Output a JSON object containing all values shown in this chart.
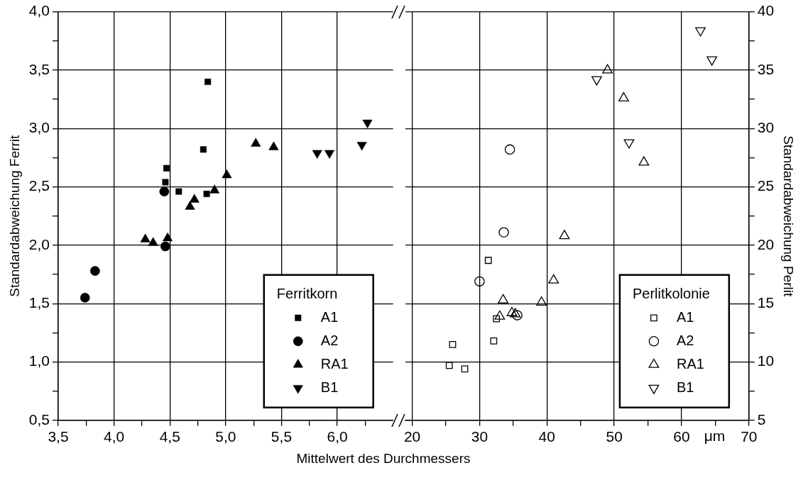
{
  "chart_data": [
    {
      "type": "scatter",
      "xlabel": "Mittelwert des Durchmessers",
      "ylabel": "Standardabweichung Ferrit",
      "legend_title": "Ferritkorn",
      "legend": "bottom right",
      "grid": true,
      "xlim": [
        3.5,
        6.5
      ],
      "xticks": [
        {
          "value": 3.5,
          "label": "3,5"
        },
        {
          "value": 3.75,
          "label": null
        },
        {
          "value": 4.0,
          "label": "4,0"
        },
        {
          "value": 4.25,
          "label": null
        },
        {
          "value": 4.5,
          "label": "4,5"
        },
        {
          "value": 4.75,
          "label": null
        },
        {
          "value": 5.0,
          "label": "5,0"
        },
        {
          "value": 5.25,
          "label": null
        },
        {
          "value": 5.5,
          "label": "5,5"
        },
        {
          "value": 5.75,
          "label": null
        },
        {
          "value": 6.0,
          "label": "6,0"
        },
        {
          "value": 6.25,
          "label": null
        }
      ],
      "ylim": [
        0.5,
        4.0
      ],
      "yticks": [
        {
          "value": 0.5,
          "label": "0,5"
        },
        {
          "value": 0.75,
          "label": null
        },
        {
          "value": 1.0,
          "label": "1,0"
        },
        {
          "value": 1.25,
          "label": null
        },
        {
          "value": 1.5,
          "label": "1,5"
        },
        {
          "value": 1.75,
          "label": null
        },
        {
          "value": 2.0,
          "label": "2,0"
        },
        {
          "value": 2.25,
          "label": null
        },
        {
          "value": 2.5,
          "label": "2,5"
        },
        {
          "value": 2.75,
          "label": null
        },
        {
          "value": 3.0,
          "label": "3,0"
        },
        {
          "value": 3.25,
          "label": null
        },
        {
          "value": 3.5,
          "label": "3,5"
        },
        {
          "value": 3.75,
          "label": null
        },
        {
          "value": 4.0,
          "label": "4,0"
        }
      ],
      "series": [
        {
          "name": "A1",
          "color": "#000000",
          "marker": "square",
          "x": [
            4.84,
            4.8,
            4.47,
            4.46,
            4.58,
            4.83
          ],
          "values": [
            3.4,
            2.82,
            2.66,
            2.54,
            2.46,
            2.44
          ]
        },
        {
          "name": "A2",
          "color": "#000000",
          "marker": "circle",
          "x": [
            4.45,
            4.46,
            3.83,
            3.74
          ],
          "values": [
            2.46,
            1.99,
            1.78,
            1.55
          ]
        },
        {
          "name": "RA1",
          "color": "#000000",
          "marker": "triangle",
          "x": [
            4.68,
            4.72,
            4.9,
            5.01,
            5.27,
            5.43,
            4.28,
            4.35,
            4.48
          ],
          "values": [
            2.33,
            2.39,
            2.47,
            2.6,
            2.87,
            2.84,
            2.05,
            2.02,
            2.06
          ]
        },
        {
          "name": "B1",
          "color": "#000000",
          "marker": "triangle-down",
          "x": [
            5.82,
            5.93,
            6.22,
            6.27
          ],
          "values": [
            2.79,
            2.79,
            2.86,
            3.05
          ]
        }
      ]
    },
    {
      "type": "scatter",
      "y2label": "Standardabweichung Perlit",
      "legend_title": "Perlitkolonie",
      "legend": "bottom right",
      "grid": true,
      "annotations": [
        "μm"
      ],
      "xlim": [
        19,
        70
      ],
      "xticks": [
        {
          "value": 20,
          "label": "20"
        },
        {
          "value": 25,
          "label": null
        },
        {
          "value": 30,
          "label": "30"
        },
        {
          "value": 35,
          "label": null
        },
        {
          "value": 40,
          "label": "40"
        },
        {
          "value": 45,
          "label": null
        },
        {
          "value": 50,
          "label": "50"
        },
        {
          "value": 55,
          "label": null
        },
        {
          "value": 60,
          "label": "60"
        },
        {
          "value": 65,
          "label": null
        },
        {
          "value": 70,
          "label": "70"
        }
      ],
      "y2lim": [
        5,
        40
      ],
      "y2ticks": [
        {
          "value": 5,
          "label": "5"
        },
        {
          "value": 7.5,
          "label": null
        },
        {
          "value": 10,
          "label": "10"
        },
        {
          "value": 12.5,
          "label": null
        },
        {
          "value": 15,
          "label": "15"
        },
        {
          "value": 17.5,
          "label": null
        },
        {
          "value": 20,
          "label": "20"
        },
        {
          "value": 22.5,
          "label": null
        },
        {
          "value": 25,
          "label": "25"
        },
        {
          "value": 27.5,
          "label": null
        },
        {
          "value": 30,
          "label": "30"
        },
        {
          "value": 32.5,
          "label": null
        },
        {
          "value": 35,
          "label": "35"
        },
        {
          "value": 37.5,
          "label": null
        },
        {
          "value": 40,
          "label": "40"
        }
      ],
      "series": [
        {
          "name": "A1",
          "color": "#000000",
          "marker": "square",
          "axis": "y2",
          "x": [
            31.3,
            32.5,
            32.1,
            26.0,
            25.5,
            27.8
          ],
          "values": [
            18.7,
            13.7,
            11.8,
            11.5,
            9.7,
            9.4
          ]
        },
        {
          "name": "A2",
          "color": "#000000",
          "marker": "circle",
          "axis": "y2",
          "x": [
            34.5,
            33.6,
            30.0,
            35.6
          ],
          "values": [
            28.2,
            21.1,
            16.9,
            14.0
          ]
        },
        {
          "name": "RA1",
          "color": "#000000",
          "marker": "triangle",
          "axis": "y2",
          "x": [
            49.0,
            51.4,
            54.4,
            42.6,
            41.0,
            33.5,
            39.2,
            33.0,
            34.8,
            35.3
          ],
          "values": [
            35.0,
            32.6,
            27.1,
            20.8,
            17.0,
            15.3,
            15.1,
            13.9,
            14.2,
            14.1
          ]
        },
        {
          "name": "B1",
          "color": "#000000",
          "marker": "triangle-down",
          "axis": "y2",
          "x": [
            62.8,
            64.5,
            47.4,
            52.2
          ],
          "values": [
            38.4,
            35.9,
            34.2,
            28.8
          ]
        }
      ]
    }
  ]
}
